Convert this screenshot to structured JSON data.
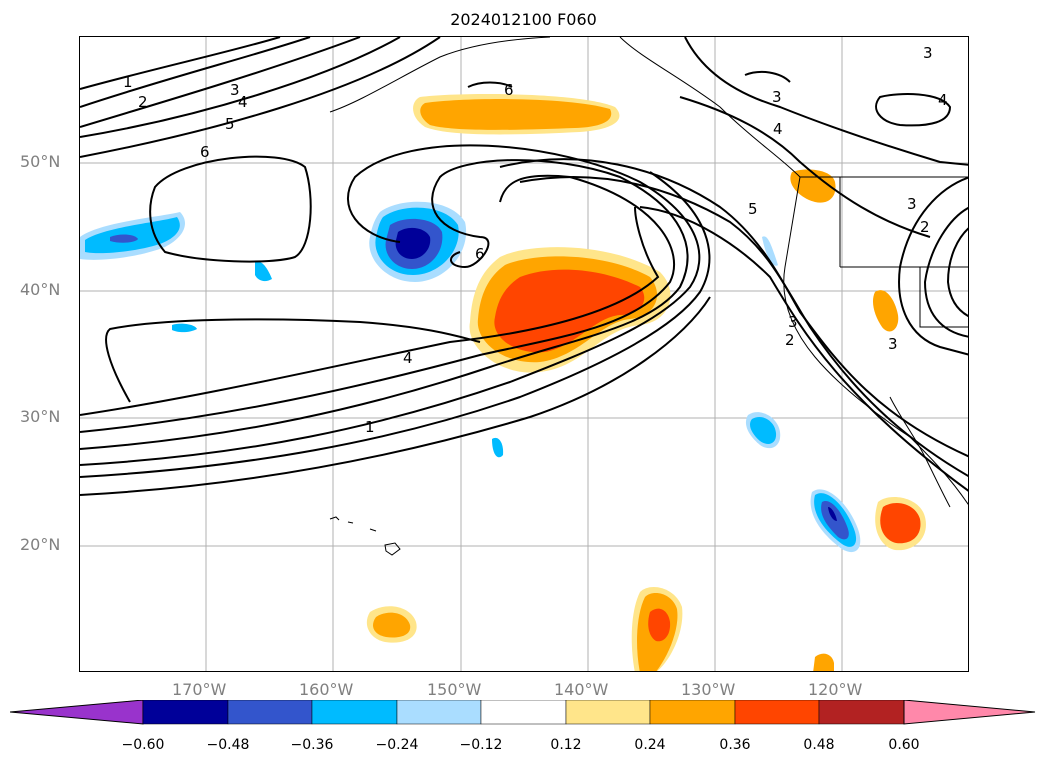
{
  "title": "2024012100 F060",
  "lat_labels": [
    "50°N",
    "40°N",
    "30°N",
    "20°N"
  ],
  "lon_labels": [
    "170°W",
    "160°W",
    "150°W",
    "140°W",
    "130°W",
    "120°W"
  ],
  "colorbar": {
    "ticks": [
      "−0.60",
      "−0.48",
      "−0.36",
      "−0.24",
      "−0.12",
      "0.12",
      "0.24",
      "0.36",
      "0.48",
      "0.60"
    ],
    "colors": [
      "#9933cc",
      "#000099",
      "#3355cc",
      "#00bbff",
      "#aaddff",
      "#ffffff",
      "#ffe58a",
      "#ffa500",
      "#ff4500",
      "#b22222",
      "#ff88aa"
    ]
  },
  "contour_labels": [
    "1",
    "2",
    "3",
    "4",
    "5",
    "6",
    "6",
    "3",
    "4",
    "5",
    "3",
    "2",
    "3",
    "2",
    "4",
    "3",
    "4",
    "1",
    "3",
    "3"
  ]
}
